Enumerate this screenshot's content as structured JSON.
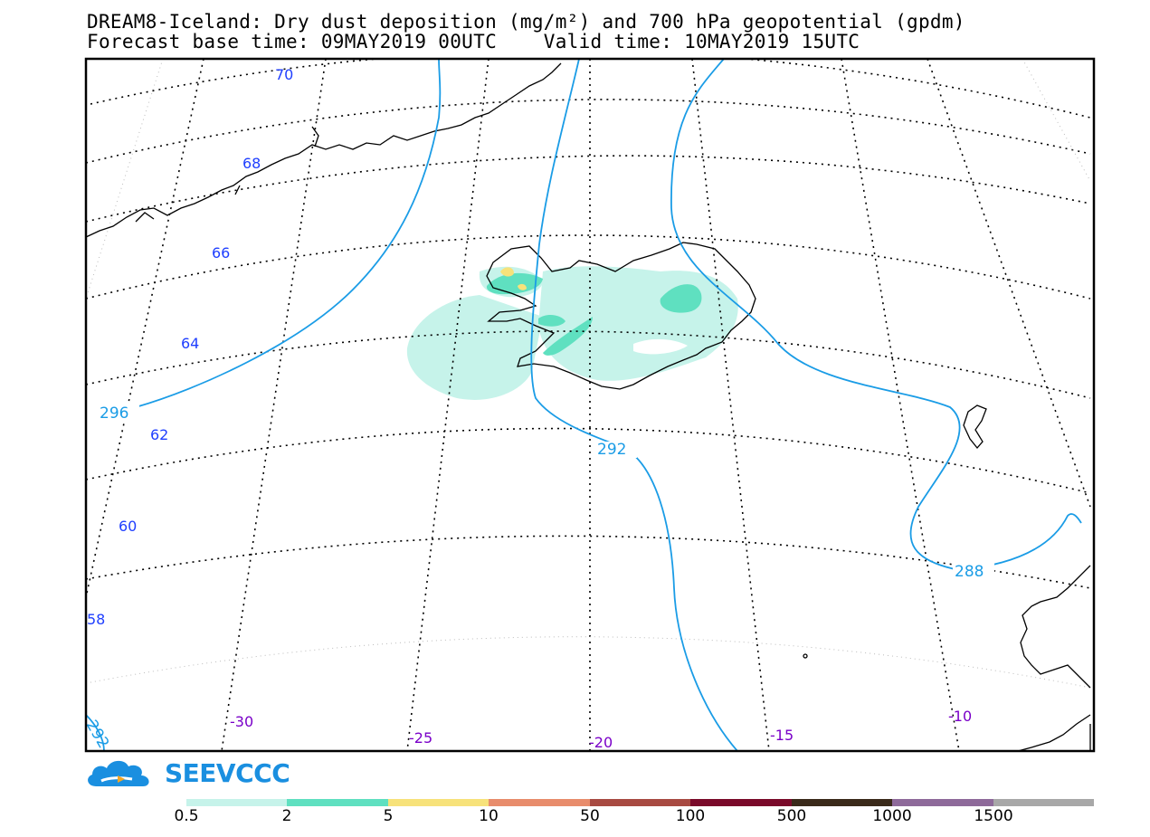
{
  "header": {
    "title_line1": "DREAM8-Iceland: Dry dust deposition (mg/m²) and 700 hPa geopotential (gpdm)",
    "title_line2": "Forecast base time: 09MAY2019 00UTC    Valid time: 10MAY2019 15UTC"
  },
  "map": {
    "lat_labels": [
      "70",
      "68",
      "66",
      "64",
      "62",
      "60",
      "58"
    ],
    "lon_labels": [
      "-30",
      "-25",
      "-20",
      "-15",
      "-10"
    ],
    "contour_labels": [
      "296",
      "292",
      "288",
      "292"
    ],
    "colors": {
      "coast": "#000000",
      "contour": "#1a9ce6",
      "grid": "#000000",
      "lat_label": "#1f3fff",
      "lon_label": "#7a00c8"
    }
  },
  "logo": {
    "text": "SEEVCCC",
    "color": "#1a8fe0"
  },
  "legend": {
    "labels": [
      "0.5",
      "2",
      "5",
      "10",
      "50",
      "100",
      "500",
      "1000",
      "1500"
    ],
    "colors": [
      "#c6f3ea",
      "#5fe0c0",
      "#f7e27a",
      "#e88c6c",
      "#a84a42",
      "#7a0a2a",
      "#3a2a1a",
      "#8e6a9a",
      "#a8a8a8"
    ]
  }
}
